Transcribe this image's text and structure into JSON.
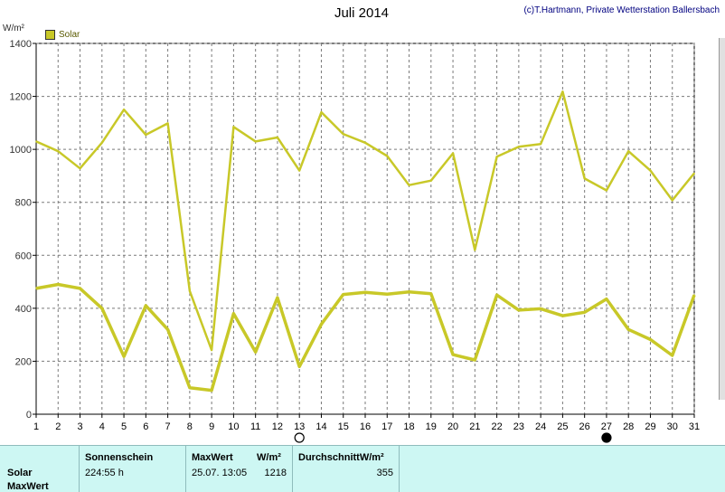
{
  "header": {
    "title": "Juli 2014",
    "credit": "(c)T.Hartmann, Private Wetterstation Ballersbach",
    "unit": "W/m²",
    "legend_label": "Solar"
  },
  "chart_data": {
    "type": "line",
    "title": "Juli 2014",
    "ylabel": "W/m²",
    "xlabel": "",
    "ylim": [
      0,
      1400
    ],
    "yticks": [
      0,
      200,
      400,
      600,
      800,
      1000,
      1200,
      1400
    ],
    "grid": true,
    "legend": "top-left",
    "x": [
      1,
      2,
      3,
      4,
      5,
      6,
      7,
      8,
      9,
      10,
      11,
      12,
      13,
      14,
      15,
      16,
      17,
      18,
      19,
      20,
      21,
      22,
      23,
      24,
      25,
      26,
      27,
      28,
      29,
      30,
      31
    ],
    "series": [
      {
        "name": "Solar",
        "color": "#c8c828",
        "values": [
          1030,
          993,
          928,
          1025,
          1150,
          1055,
          1098,
          465,
          242,
          1085,
          1030,
          1045,
          920,
          1140,
          1058,
          1025,
          975,
          865,
          882,
          985,
          620,
          972,
          1010,
          1020,
          1218,
          890,
          845,
          993,
          920,
          808,
          910
        ]
      },
      {
        "name": "",
        "color": "#c8c828",
        "values": [
          475,
          490,
          475,
          400,
          218,
          410,
          320,
          100,
          90,
          380,
          235,
          440,
          180,
          340,
          452,
          460,
          453,
          462,
          455,
          225,
          205,
          450,
          393,
          398,
          372,
          385,
          435,
          320,
          282,
          222,
          450
        ]
      }
    ],
    "markers": [
      {
        "day": 13,
        "symbol": "open-circle"
      },
      {
        "day": 27,
        "symbol": "filled-circle"
      }
    ]
  },
  "panel": {
    "rows": [
      "Solar",
      "MaxWert"
    ],
    "sonnenschein_header": "Sonnenschein",
    "sonnenschein_value": "224:55 h",
    "maxwert_header": "MaxWert",
    "maxwert_unit": "W/m²",
    "maxwert_date": "25.07.  13:05",
    "maxwert_value": "1218",
    "durchschnitt_header": "DurchschnittW/m²",
    "durchschnitt_value": "355"
  }
}
